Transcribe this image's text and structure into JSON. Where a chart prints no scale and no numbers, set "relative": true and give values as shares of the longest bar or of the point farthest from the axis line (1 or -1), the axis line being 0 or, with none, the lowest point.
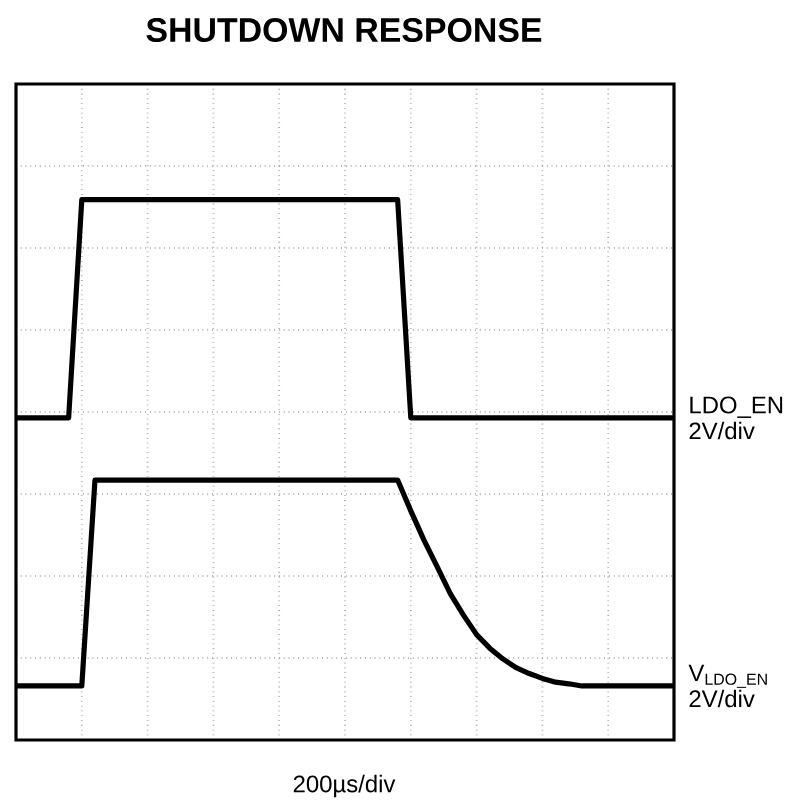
{
  "chart_data": {
    "type": "line",
    "title": "SHUTDOWN RESPONSE",
    "relative": true,
    "grid": true,
    "legend": false,
    "marker": "none",
    "line_style": "solid",
    "categories": [
      null,
      null,
      null,
      null,
      null,
      null,
      null,
      null,
      null,
      null,
      null,
      null,
      null,
      null,
      null,
      null,
      null,
      null,
      null,
      null,
      null,
      null,
      null,
      null,
      null,
      null,
      null,
      null,
      null,
      null,
      null,
      null,
      null,
      null,
      null,
      null,
      null,
      null,
      null,
      null,
      null,
      null,
      null,
      null,
      null,
      null,
      null,
      null,
      null,
      null,
      null
    ],
    "series": [
      {
        "name": "LDO_EN",
        "color": "#000000",
        "values": [
          0.596,
          0.596,
          0.596,
          0.596,
          0.596,
          1,
          1,
          1,
          1,
          1,
          1,
          1,
          1,
          1,
          1,
          1,
          1,
          1,
          1,
          1,
          1,
          1,
          1,
          1,
          1,
          1,
          1,
          1,
          1,
          1,
          0.596,
          0.596,
          0.596,
          0.596,
          0.596,
          0.596,
          0.596,
          0.596,
          0.596,
          0.596,
          0.596,
          0.596,
          0.596,
          0.596,
          0.596,
          0.596,
          0.596,
          0.596,
          0.596,
          0.596,
          0.596
        ]
      },
      {
        "name": "V$_{LDO_EN}$",
        "color": "#000000",
        "values": [
          0.1,
          0.1,
          0.1,
          0.1,
          0.1,
          0.1,
          0.481,
          0.481,
          0.481,
          0.481,
          0.481,
          0.481,
          0.481,
          0.481,
          0.481,
          0.481,
          0.481,
          0.481,
          0.481,
          0.481,
          0.481,
          0.481,
          0.481,
          0.481,
          0.481,
          0.481,
          0.481,
          0.481,
          0.481,
          0.481,
          0.424,
          0.37,
          0.321,
          0.271,
          0.231,
          0.195,
          0.17,
          0.15,
          0.134,
          0.123,
          0.114,
          0.107,
          0.104,
          0.1,
          0.1,
          0.1,
          0.1,
          0.1,
          0.1,
          0.1,
          0.1
        ]
      }
    ],
    "annotations": [
      "2V/div",
      "2V/div",
      "200µs/div"
    ]
  }
}
